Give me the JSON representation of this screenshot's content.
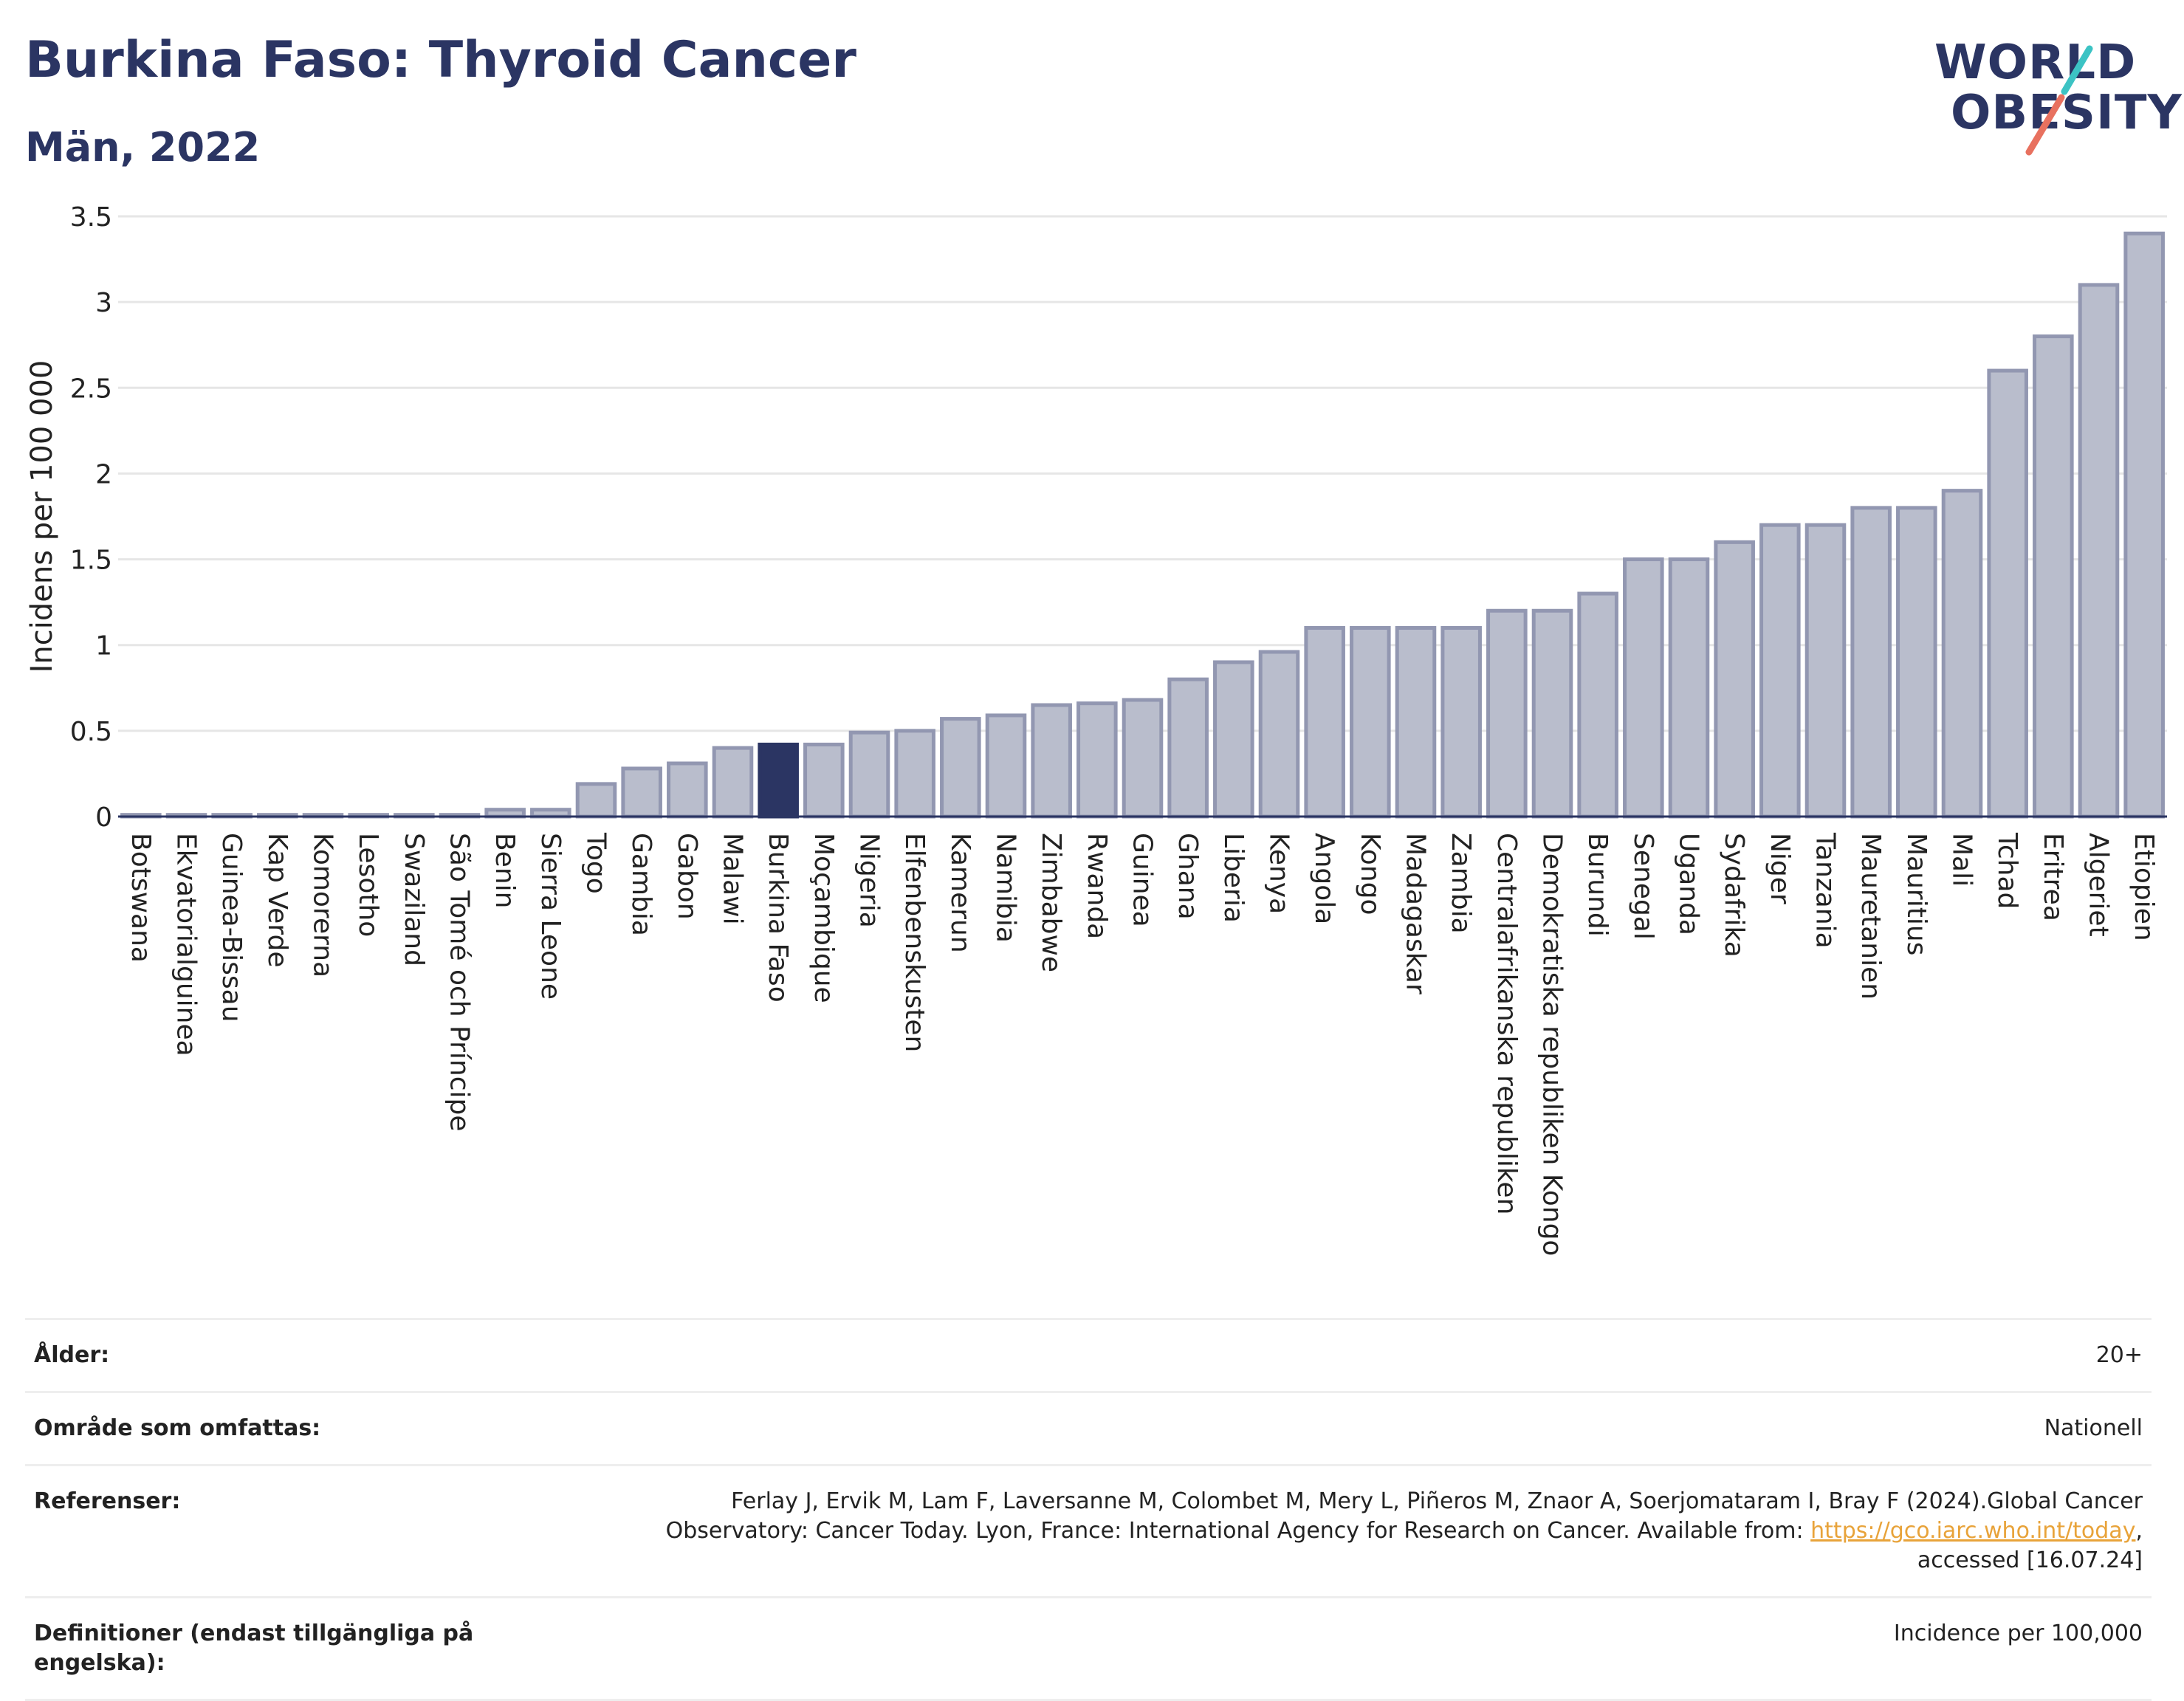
{
  "header": {
    "title": "Burkina Faso: Thyroid Cancer",
    "subtitle": "Män, 2022"
  },
  "logo": {
    "line1": "WORLD",
    "line2": "OBESITY",
    "accent_colors": [
      "#3cc3c4",
      "#e8715f"
    ]
  },
  "colors": {
    "bar": "#b9bdcc",
    "bar_stroke": "#9297b1",
    "highlight": "#2b3563",
    "grid": "#e6e6e6",
    "axis": "#2b3563"
  },
  "chart_data": {
    "type": "bar",
    "title": "Burkina Faso: Thyroid Cancer",
    "ylabel": "Incidens per 100 000",
    "xlabel": "",
    "ylim": [
      0,
      3.5
    ],
    "yticks": [
      0,
      0.5,
      1,
      1.5,
      2,
      2.5,
      3,
      3.5
    ],
    "ytick_labels": [
      "0",
      "0.5",
      "1",
      "1.5",
      "2",
      "2.5",
      "3",
      "3.5"
    ],
    "grid": true,
    "highlight": "Burkina Faso",
    "categories": [
      "Botswana",
      "Ekvatorialguinea",
      "Guinea-Bissau",
      "Kap Verde",
      "Komorerna",
      "Lesotho",
      "Swaziland",
      "São Tomé och Príncipe",
      "Benin",
      "Sierra Leone",
      "Togo",
      "Gambia",
      "Gabon",
      "Malawi",
      "Burkina Faso",
      "Moçambique",
      "Nigeria",
      "Elfenbenskusten",
      "Kamerun",
      "Namibia",
      "Zimbabwe",
      "Rwanda",
      "Guinea",
      "Ghana",
      "Liberia",
      "Kenya",
      "Angola",
      "Kongo",
      "Madagaskar",
      "Zambia",
      "Centralafrikanska republiken",
      "Demokratiska republiken Kongo",
      "Burundi",
      "Senegal",
      "Uganda",
      "Sydafrika",
      "Niger",
      "Tanzania",
      "Mauretanien",
      "Mauritius",
      "Mali",
      "Tchad",
      "Eritrea",
      "Algeriet",
      "Etiopien"
    ],
    "values": [
      0.01,
      0.01,
      0.01,
      0.01,
      0.01,
      0.01,
      0.01,
      0.01,
      0.04,
      0.04,
      0.19,
      0.28,
      0.31,
      0.4,
      0.42,
      0.42,
      0.49,
      0.5,
      0.57,
      0.59,
      0.65,
      0.66,
      0.68,
      0.8,
      0.9,
      0.96,
      1.1,
      1.1,
      1.1,
      1.1,
      1.2,
      1.2,
      1.3,
      1.5,
      1.5,
      1.6,
      1.7,
      1.7,
      1.8,
      1.8,
      1.9,
      2.6,
      2.8,
      3.1,
      3.4
    ]
  },
  "info": {
    "rows": [
      {
        "label": "Ålder:",
        "value": "20+"
      },
      {
        "label": "Område som omfattas:",
        "value": "Nationell"
      },
      {
        "label": "Referenser:",
        "value_pre": "Ferlay J, Ervik M, Lam F, Laversanne M, Colombet M, Mery L, Piñeros M, Znaor A, Soerjomataram I, Bray F (2024).Global Cancer Observatory: Cancer Today. Lyon, France: International Agency for Research on Cancer. Available from: ",
        "link": "https://gco.iarc.who.int/today",
        "value_post": ", accessed [16.07.24]"
      },
      {
        "label": "Definitioner (endast tillgängliga på engelska):",
        "value": "Incidence per 100,000"
      }
    ]
  }
}
